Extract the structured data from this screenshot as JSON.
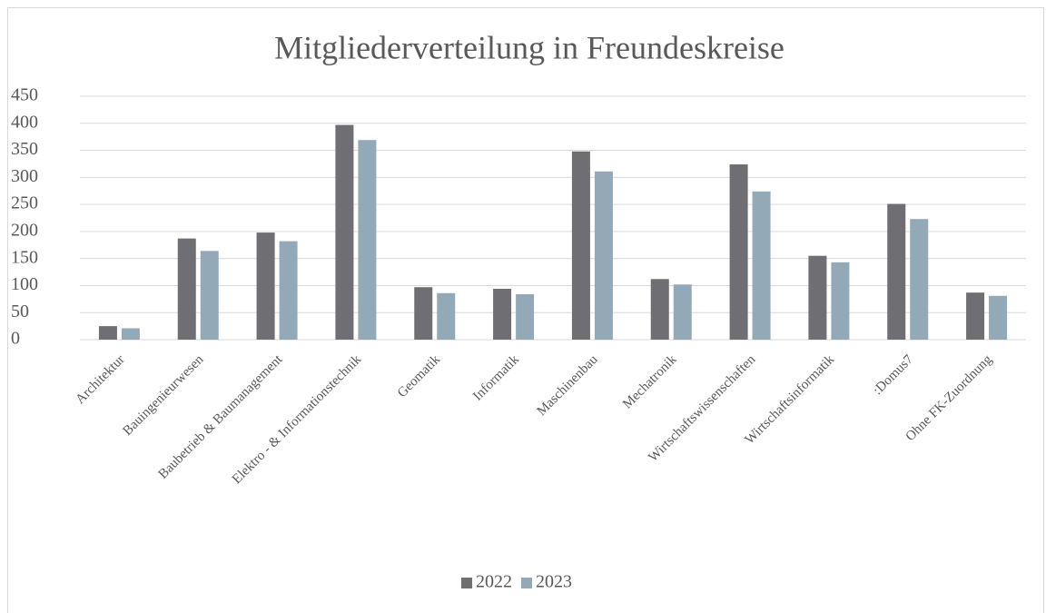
{
  "chart_data": {
    "type": "bar",
    "title": "Mitgliederverteilung in Freundeskreise",
    "categories": [
      "Architektur",
      "Bauingenieurwesen",
      "Baubetrieb & Baumanagement",
      "Elektro - & Informationstechnik",
      "Geomatik",
      "Informatik",
      "Maschinenbau",
      "Mechatronik",
      "Wirtschaftswissenschaften",
      "Wirtschaftsinformatik",
      ":Domus7",
      "Ohne FK-Zuordnung"
    ],
    "series": [
      {
        "name": "2022",
        "color": "#6e6e73",
        "values": [
          25,
          187,
          198,
          397,
          97,
          94,
          348,
          112,
          324,
          155,
          251,
          87
        ]
      },
      {
        "name": "2023",
        "color": "#93a9b8",
        "values": [
          21,
          164,
          182,
          369,
          86,
          84,
          311,
          102,
          274,
          143,
          223,
          81
        ]
      }
    ],
    "ylim": [
      0,
      450
    ],
    "yticks": [
      0,
      50,
      100,
      150,
      200,
      250,
      300,
      350,
      400,
      450
    ],
    "grid": true,
    "legend": "bottom"
  }
}
